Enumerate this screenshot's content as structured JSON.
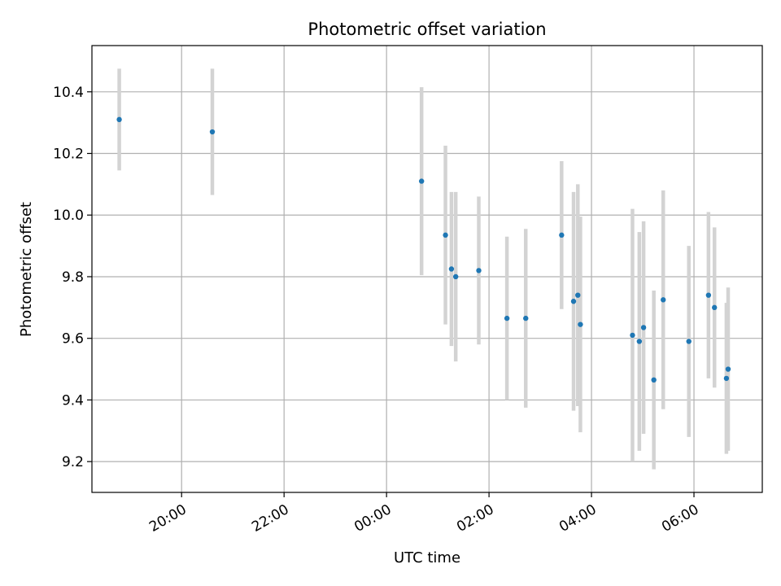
{
  "chart_data": {
    "type": "scatter",
    "title": "Photometric offset variation",
    "xlabel": "UTC time",
    "ylabel": "Photometric offset",
    "x_axis": {
      "kind": "time",
      "start": "18:15",
      "end": "07:20",
      "ticks": [
        "20:00",
        "22:00",
        "00:00",
        "02:00",
        "04:00",
        "06:00"
      ]
    },
    "y_axis": {
      "ylim": [
        9.1,
        10.55
      ],
      "ticks": [
        "9.2",
        "9.4",
        "9.6",
        "9.8",
        "10.0",
        "10.2",
        "10.4"
      ]
    },
    "grid": true,
    "colors": {
      "point": "#1f77b4",
      "errorbar": "#d3d3d3",
      "grid": "#b0b0b0",
      "axes": "#000000"
    },
    "points": [
      {
        "time": "18:47",
        "y": 10.31,
        "err": 0.165
      },
      {
        "time": "20:36",
        "y": 10.27,
        "err": 0.205
      },
      {
        "time": "00:41",
        "y": 10.11,
        "err": 0.305
      },
      {
        "time": "01:09",
        "y": 9.935,
        "err": 0.29
      },
      {
        "time": "01:16",
        "y": 9.825,
        "err": 0.25
      },
      {
        "time": "01:21",
        "y": 9.8,
        "err": 0.275
      },
      {
        "time": "01:48",
        "y": 9.82,
        "err": 0.24
      },
      {
        "time": "02:21",
        "y": 9.665,
        "err": 0.265
      },
      {
        "time": "02:43",
        "y": 9.665,
        "err": 0.29
      },
      {
        "time": "03:25",
        "y": 9.935,
        "err": 0.24
      },
      {
        "time": "03:39",
        "y": 9.72,
        "err": 0.355
      },
      {
        "time": "03:44",
        "y": 9.74,
        "err": 0.36
      },
      {
        "time": "03:47",
        "y": 9.645,
        "err": 0.35
      },
      {
        "time": "04:48",
        "y": 9.61,
        "err": 0.41
      },
      {
        "time": "04:56",
        "y": 9.59,
        "err": 0.355
      },
      {
        "time": "05:01",
        "y": 9.635,
        "err": 0.345
      },
      {
        "time": "05:13",
        "y": 9.465,
        "err": 0.29
      },
      {
        "time": "05:24",
        "y": 9.725,
        "err": 0.355
      },
      {
        "time": "05:54",
        "y": 9.59,
        "err": 0.31
      },
      {
        "time": "06:17",
        "y": 9.74,
        "err": 0.27
      },
      {
        "time": "06:24",
        "y": 9.7,
        "err": 0.26
      },
      {
        "time": "06:38",
        "y": 9.47,
        "err": 0.245
      },
      {
        "time": "06:40",
        "y": 9.5,
        "err": 0.265
      }
    ]
  }
}
